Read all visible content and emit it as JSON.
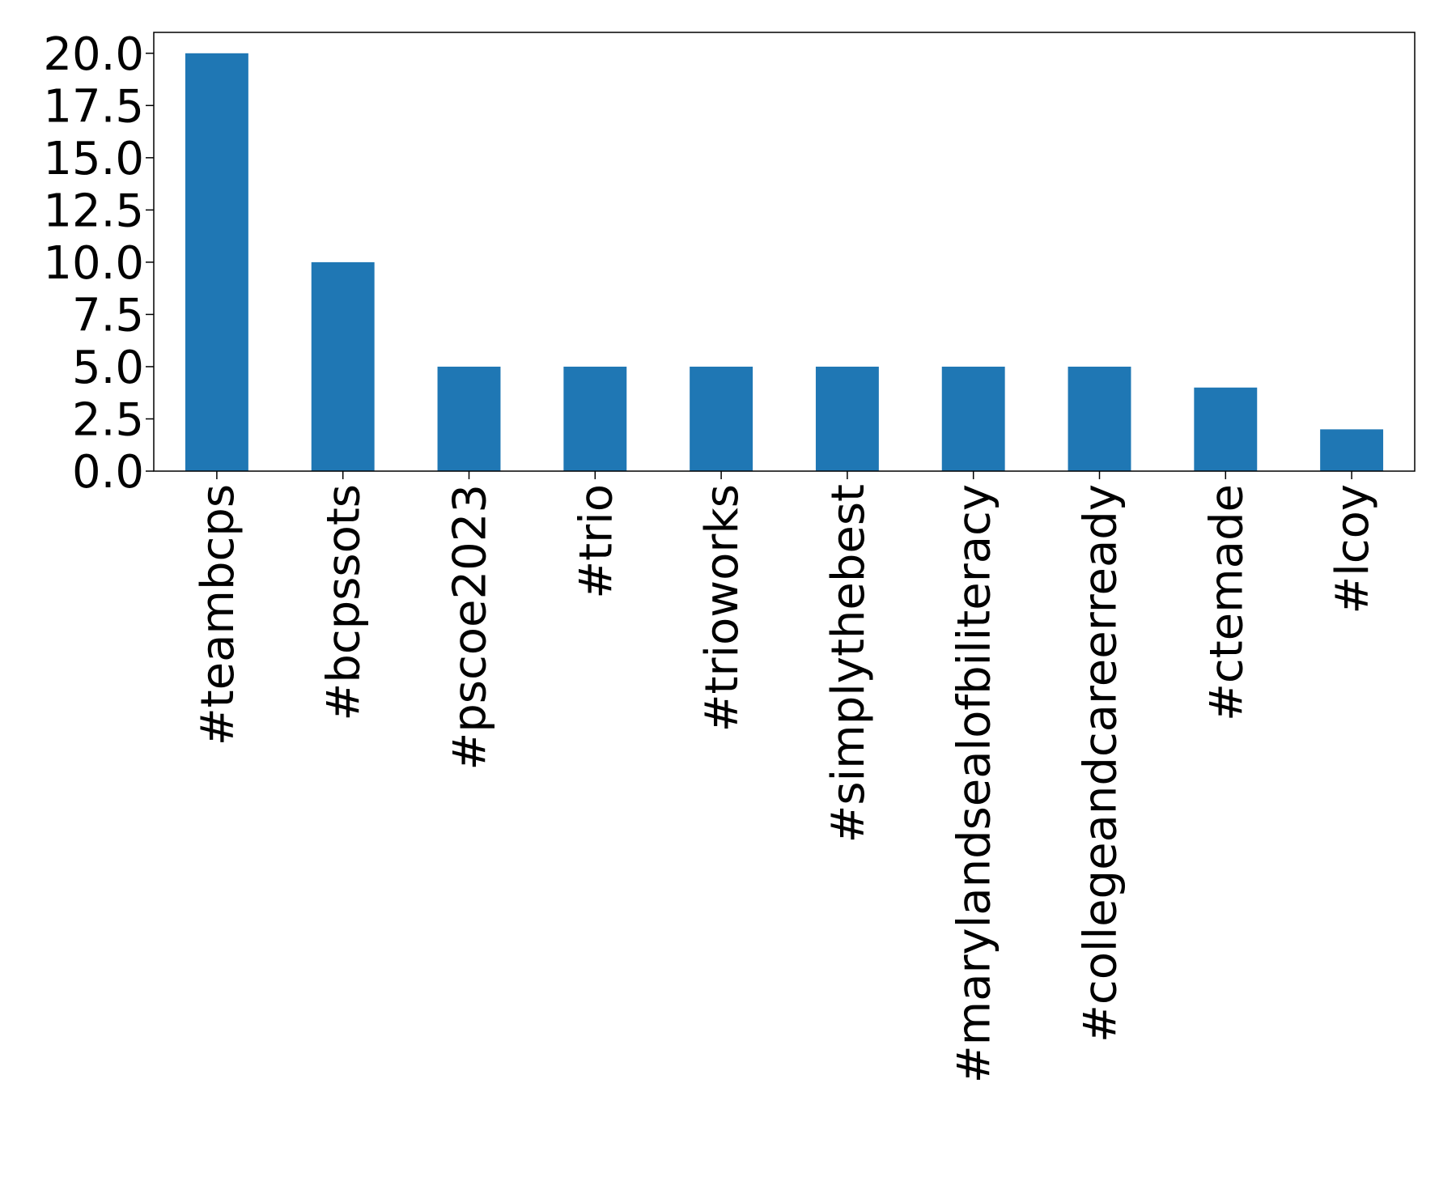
{
  "chart_data": {
    "type": "bar",
    "title": "",
    "xlabel": "",
    "ylabel": "",
    "categories": [
      "#teambcps",
      "#bcpssots",
      "#pscoe2023",
      "#trio",
      "#trioworks",
      "#simplythebest",
      "#marylandsealofbiliteracy",
      "#collegeandcareerready",
      "#ctemade",
      "#lcoy"
    ],
    "values": [
      20,
      10,
      5,
      5,
      5,
      5,
      5,
      5,
      4,
      2
    ],
    "ylim": [
      0,
      21
    ],
    "yticks": [
      0.0,
      2.5,
      5.0,
      7.5,
      10.0,
      12.5,
      15.0,
      17.5,
      20.0
    ],
    "ytick_labels": [
      "0.0",
      "2.5",
      "5.0",
      "7.5",
      "10.0",
      "12.5",
      "15.0",
      "17.5",
      "20.0"
    ],
    "grid": false,
    "legend": "none",
    "bar_color": "#1f77b4"
  }
}
